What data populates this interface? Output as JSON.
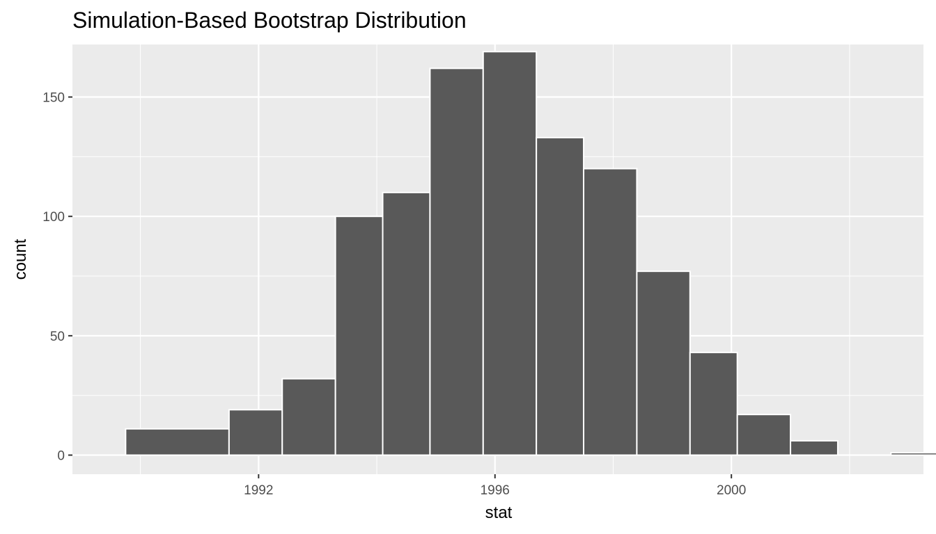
{
  "chart_data": {
    "type": "bar",
    "subtype": "histogram",
    "title": "Simulation-Based Bootstrap Distribution",
    "xlabel": "stat",
    "ylabel": "count",
    "bins": [
      {
        "x0": 1989.75,
        "x1": 1991.5,
        "count": 11
      },
      {
        "x0": 1991.5,
        "x1": 1992.4,
        "count": 19
      },
      {
        "x0": 1992.4,
        "x1": 1993.3,
        "count": 32
      },
      {
        "x0": 1993.3,
        "x1": 1994.1,
        "count": 100
      },
      {
        "x0": 1994.1,
        "x1": 1994.9,
        "count": 110
      },
      {
        "x0": 1994.9,
        "x1": 1995.8,
        "count": 162
      },
      {
        "x0": 1995.8,
        "x1": 1996.7,
        "count": 169
      },
      {
        "x0": 1996.7,
        "x1": 1997.5,
        "count": 133
      },
      {
        "x0": 1997.5,
        "x1": 1998.4,
        "count": 120
      },
      {
        "x0": 1998.4,
        "x1": 1999.3,
        "count": 77
      },
      {
        "x0": 1999.3,
        "x1": 2000.1,
        "count": 43
      },
      {
        "x0": 2000.1,
        "x1": 2001.0,
        "count": 17
      },
      {
        "x0": 2001.0,
        "x1": 2001.8,
        "count": 6
      },
      {
        "x0": 2001.8,
        "x1": 2002.7,
        "count": 0
      },
      {
        "x0": 2002.7,
        "x1": 2003.5,
        "count": 1
      }
    ],
    "xlim": [
      1988.85,
      2003.25
    ],
    "ylim": [
      -8,
      172
    ],
    "x_ticks": [
      1992,
      1996,
      2000
    ],
    "x_tick_labels": [
      "1992",
      "1996",
      "2000"
    ],
    "x_minor_ticks": [
      1990,
      1994,
      1998,
      2002
    ],
    "y_ticks": [
      0,
      50,
      100,
      150
    ],
    "y_tick_labels": [
      "0",
      "50",
      "100",
      "150"
    ],
    "y_minor_ticks": [
      25,
      75,
      125
    ],
    "grid": true,
    "legend": "none",
    "colors": {
      "bar_fill": "#595959",
      "bar_outline": "#ffffff",
      "panel_background": "#ebebeb",
      "grid": "#ffffff",
      "tick_text": "#4d4d4d",
      "tick_mark": "#333333"
    }
  }
}
